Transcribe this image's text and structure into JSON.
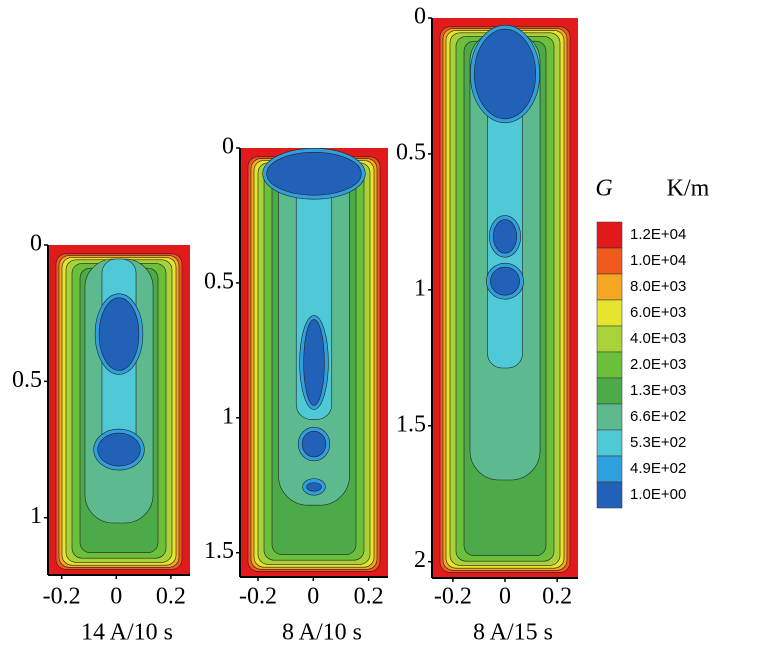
{
  "chart_data": [
    {
      "type": "contour",
      "xlabel": "14 A/10 s",
      "xlim": [
        -0.25,
        0.27
      ],
      "xticks": [
        -0.2,
        0,
        0.2
      ],
      "ylim": [
        0,
        1.21
      ],
      "yticks": [
        0,
        0.5,
        1
      ],
      "y_inverted": true
    },
    {
      "type": "contour",
      "xlabel": "8 A/10 s",
      "xlim": [
        -0.265,
        0.27
      ],
      "xticks": [
        -0.2,
        0,
        0.2
      ],
      "ylim": [
        0,
        1.59
      ],
      "yticks": [
        0,
        0.5,
        1,
        1.5
      ],
      "y_inverted": true
    },
    {
      "type": "contour",
      "xlabel": "8 A/15 s",
      "xlim": [
        -0.28,
        0.28
      ],
      "xticks": [
        -0.2,
        0,
        0.2
      ],
      "ylim": [
        0,
        2.06
      ],
      "yticks": [
        0,
        0.5,
        1,
        1.5,
        2
      ],
      "y_inverted": true
    }
  ],
  "colorbar": {
    "title": "G",
    "unit": "K/m",
    "levels": [
      {
        "value": 12000,
        "label": "1.2E+04",
        "color": "#e31a1c"
      },
      {
        "value": 10000,
        "label": "1.0E+04",
        "color": "#f05a1e"
      },
      {
        "value": 8000,
        "label": "8.0E+03",
        "color": "#f5a623"
      },
      {
        "value": 6000,
        "label": "6.0E+03",
        "color": "#e6e42c"
      },
      {
        "value": 4000,
        "label": "4.0E+03",
        "color": "#a9d13a"
      },
      {
        "value": 2000,
        "label": "2.0E+03",
        "color": "#6cbf3b"
      },
      {
        "value": 1300,
        "label": "1.3E+03",
        "color": "#4caa48"
      },
      {
        "value": 660,
        "label": "6.6E+02",
        "color": "#5cba8e"
      },
      {
        "value": 530,
        "label": "5.3E+02",
        "color": "#4fc9d6"
      },
      {
        "value": 490,
        "label": "4.9E+02",
        "color": "#2f9fe0"
      },
      {
        "value": 1,
        "label": "1.0E+00",
        "color": "#2261b8"
      }
    ]
  }
}
